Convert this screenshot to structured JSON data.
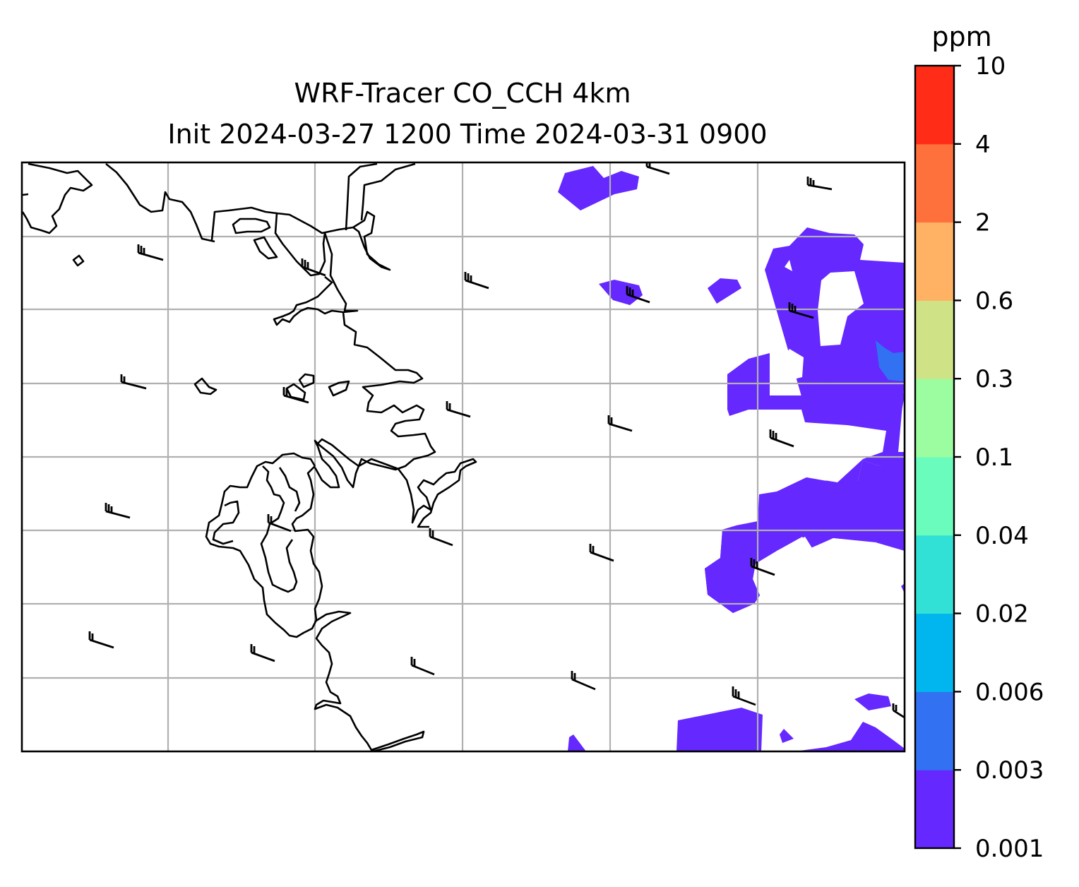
{
  "title": {
    "line1": "WRF-Tracer CO_CCH 4km",
    "line2": "Init 2024-03-27 1200 Time 2024-03-31 0900"
  },
  "colorbar": {
    "unit": "ppm",
    "levels": [
      "0.001",
      "0.003",
      "0.006",
      "0.02",
      "0.04",
      "0.1",
      "0.3",
      "0.6",
      "2",
      "4",
      "10"
    ],
    "colors": [
      "#6528ff",
      "#3171f2",
      "#01b5ee",
      "#31e1d6",
      "#69fcbd",
      "#9cfca0",
      "#cfe286",
      "#ffb264",
      "#ff713c",
      "#ff2c17"
    ]
  },
  "map": {
    "gridlines": true,
    "coastline_color": "#000000",
    "gridline_color": "#b0b0b0",
    "plume_colors": [
      "#6528ff",
      "#3171f2"
    ]
  }
}
